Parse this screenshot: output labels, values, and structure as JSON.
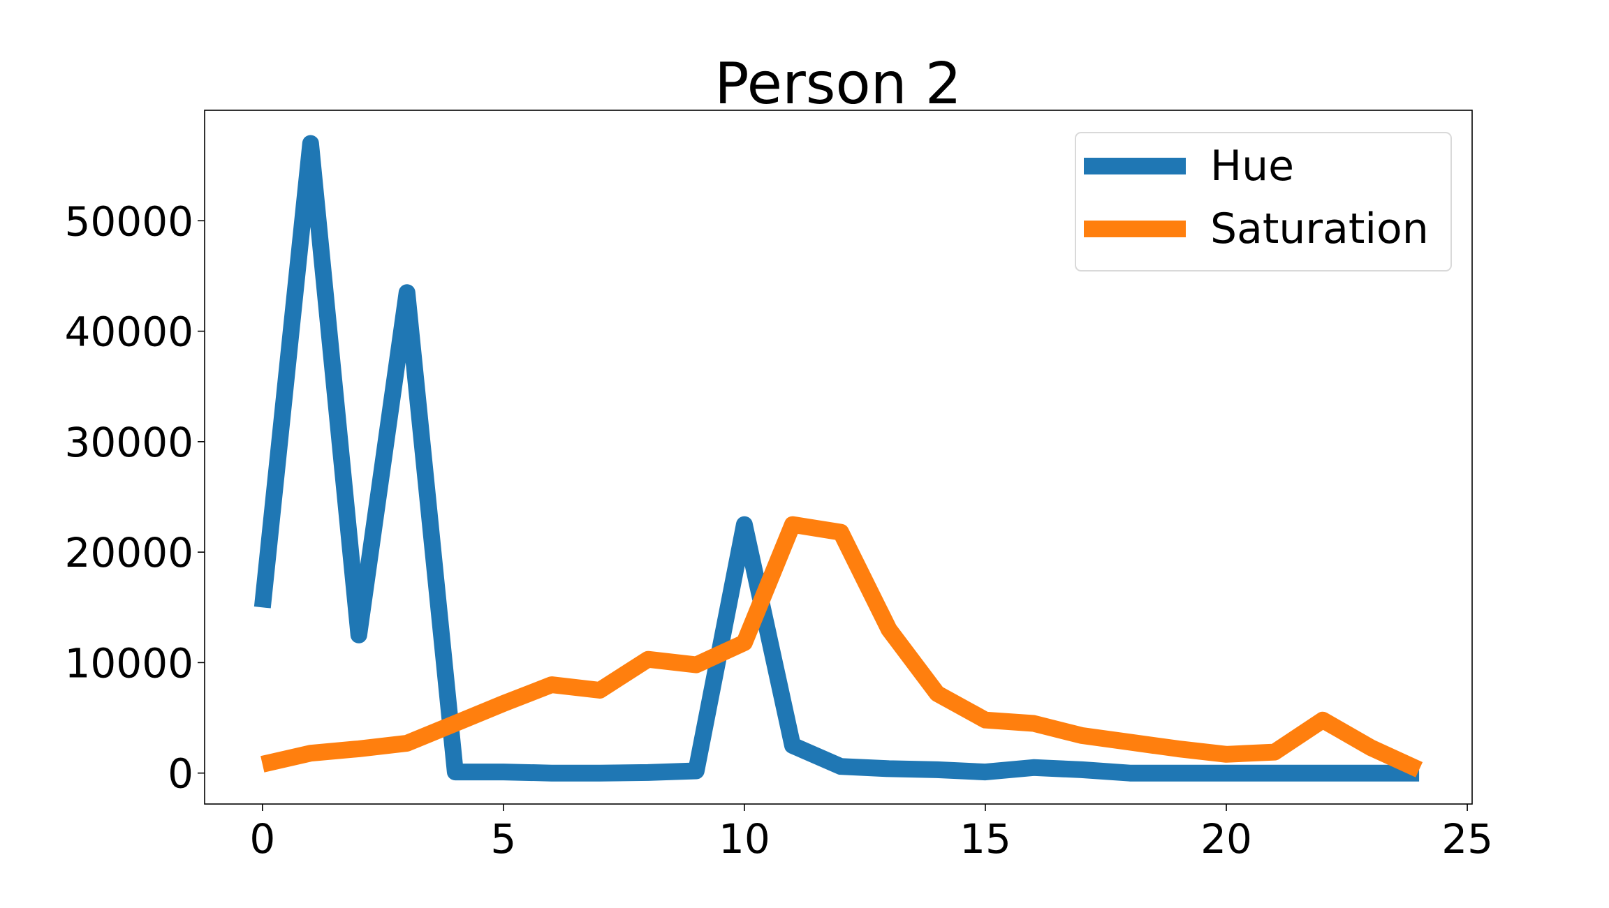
{
  "chart_data": {
    "type": "line",
    "title": "Person 2",
    "xlabel": "",
    "ylabel": "",
    "xlim": [
      -1.2,
      25.1
    ],
    "ylim": [
      -2800,
      60000
    ],
    "xticks": [
      0,
      5,
      10,
      15,
      20,
      25
    ],
    "yticks": [
      0,
      10000,
      20000,
      30000,
      40000,
      50000
    ],
    "x": [
      0,
      1,
      2,
      3,
      4,
      5,
      6,
      7,
      8,
      9,
      10,
      11,
      12,
      13,
      14,
      15,
      16,
      17,
      18,
      19,
      20,
      21,
      22,
      23,
      24
    ],
    "series": [
      {
        "name": "Hue",
        "color": "#1f77b4",
        "values": [
          15000,
          57000,
          12500,
          43500,
          100,
          100,
          0,
          0,
          50,
          200,
          22500,
          2500,
          600,
          400,
          300,
          100,
          500,
          300,
          0,
          0,
          0,
          0,
          0,
          0,
          0
        ]
      },
      {
        "name": "Saturation",
        "color": "#ff7f0e",
        "values": [
          800,
          1800,
          2200,
          2700,
          4500,
          6300,
          8000,
          7500,
          10300,
          9800,
          11800,
          22500,
          21800,
          13000,
          7200,
          4800,
          4500,
          3400,
          2800,
          2200,
          1700,
          1900,
          4800,
          2300,
          300
        ]
      }
    ],
    "legend": "top-right",
    "grid": false
  }
}
